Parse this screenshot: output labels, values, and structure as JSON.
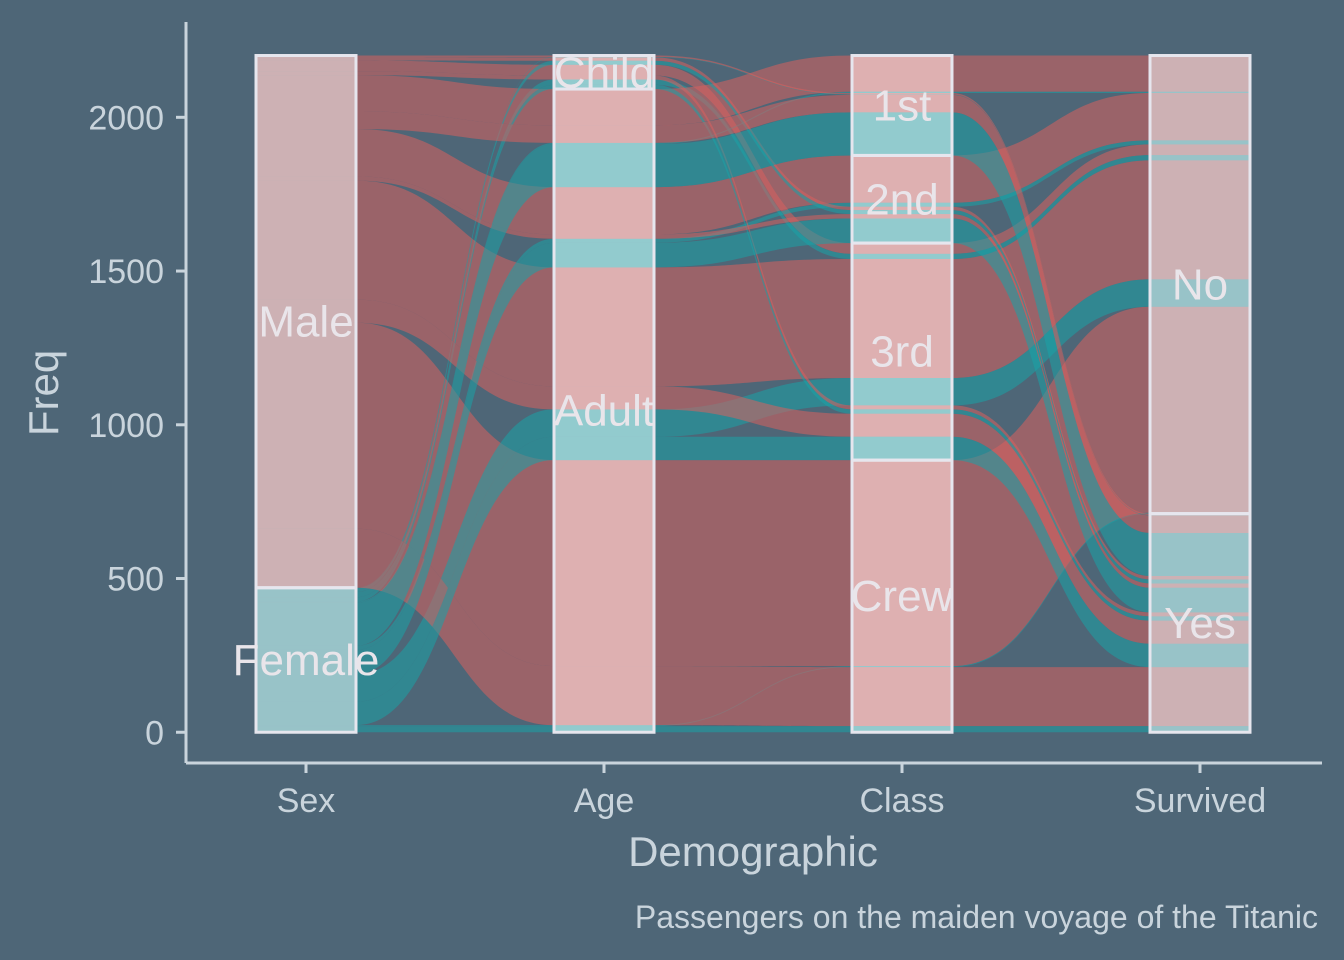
{
  "chart_data": {
    "type": "alluvial",
    "title": "",
    "xlabel": "Demographic",
    "ylabel": "Freq",
    "caption": "Passengers on the maiden voyage of the Titanic",
    "ylim": [
      -100,
      2310
    ],
    "yticks": [
      0,
      500,
      1000,
      1500,
      2000
    ],
    "axes": [
      "Sex",
      "Age",
      "Class",
      "Survived"
    ],
    "strata": {
      "Sex": [
        "Male",
        "Female"
      ],
      "Age": [
        "Child",
        "Adult"
      ],
      "Class": [
        "1st",
        "2nd",
        "3rd",
        "Crew"
      ],
      "Survived": [
        "No",
        "Yes"
      ]
    },
    "fill_by": "Sex",
    "colors": {
      "Male": "#d9605f",
      "Female": "#1aa3a8"
    },
    "background": "#4e6677",
    "flows": [
      {
        "Sex": "Male",
        "Age": "Child",
        "Class": "1st",
        "Survived": "No",
        "Freq": 0
      },
      {
        "Sex": "Male",
        "Age": "Child",
        "Class": "2nd",
        "Survived": "No",
        "Freq": 0
      },
      {
        "Sex": "Male",
        "Age": "Child",
        "Class": "3rd",
        "Survived": "No",
        "Freq": 35
      },
      {
        "Sex": "Male",
        "Age": "Child",
        "Class": "Crew",
        "Survived": "No",
        "Freq": 0
      },
      {
        "Sex": "Female",
        "Age": "Child",
        "Class": "1st",
        "Survived": "No",
        "Freq": 0
      },
      {
        "Sex": "Female",
        "Age": "Child",
        "Class": "2nd",
        "Survived": "No",
        "Freq": 0
      },
      {
        "Sex": "Female",
        "Age": "Child",
        "Class": "3rd",
        "Survived": "No",
        "Freq": 17
      },
      {
        "Sex": "Female",
        "Age": "Child",
        "Class": "Crew",
        "Survived": "No",
        "Freq": 0
      },
      {
        "Sex": "Male",
        "Age": "Adult",
        "Class": "1st",
        "Survived": "No",
        "Freq": 118
      },
      {
        "Sex": "Male",
        "Age": "Adult",
        "Class": "2nd",
        "Survived": "No",
        "Freq": 154
      },
      {
        "Sex": "Male",
        "Age": "Adult",
        "Class": "3rd",
        "Survived": "No",
        "Freq": 387
      },
      {
        "Sex": "Male",
        "Age": "Adult",
        "Class": "Crew",
        "Survived": "No",
        "Freq": 670
      },
      {
        "Sex": "Female",
        "Age": "Adult",
        "Class": "1st",
        "Survived": "No",
        "Freq": 4
      },
      {
        "Sex": "Female",
        "Age": "Adult",
        "Class": "2nd",
        "Survived": "No",
        "Freq": 13
      },
      {
        "Sex": "Female",
        "Age": "Adult",
        "Class": "3rd",
        "Survived": "No",
        "Freq": 89
      },
      {
        "Sex": "Female",
        "Age": "Adult",
        "Class": "Crew",
        "Survived": "No",
        "Freq": 3
      },
      {
        "Sex": "Male",
        "Age": "Child",
        "Class": "1st",
        "Survived": "Yes",
        "Freq": 5
      },
      {
        "Sex": "Male",
        "Age": "Child",
        "Class": "2nd",
        "Survived": "Yes",
        "Freq": 11
      },
      {
        "Sex": "Male",
        "Age": "Child",
        "Class": "3rd",
        "Survived": "Yes",
        "Freq": 13
      },
      {
        "Sex": "Male",
        "Age": "Child",
        "Class": "Crew",
        "Survived": "Yes",
        "Freq": 0
      },
      {
        "Sex": "Female",
        "Age": "Child",
        "Class": "1st",
        "Survived": "Yes",
        "Freq": 1
      },
      {
        "Sex": "Female",
        "Age": "Child",
        "Class": "2nd",
        "Survived": "Yes",
        "Freq": 13
      },
      {
        "Sex": "Female",
        "Age": "Child",
        "Class": "3rd",
        "Survived": "Yes",
        "Freq": 14
      },
      {
        "Sex": "Female",
        "Age": "Child",
        "Class": "Crew",
        "Survived": "Yes",
        "Freq": 0
      },
      {
        "Sex": "Male",
        "Age": "Adult",
        "Class": "1st",
        "Survived": "Yes",
        "Freq": 57
      },
      {
        "Sex": "Male",
        "Age": "Adult",
        "Class": "2nd",
        "Survived": "Yes",
        "Freq": 14
      },
      {
        "Sex": "Male",
        "Age": "Adult",
        "Class": "3rd",
        "Survived": "Yes",
        "Freq": 75
      },
      {
        "Sex": "Male",
        "Age": "Adult",
        "Class": "Crew",
        "Survived": "Yes",
        "Freq": 192
      },
      {
        "Sex": "Female",
        "Age": "Adult",
        "Class": "1st",
        "Survived": "Yes",
        "Freq": 140
      },
      {
        "Sex": "Female",
        "Age": "Adult",
        "Class": "2nd",
        "Survived": "Yes",
        "Freq": 80
      },
      {
        "Sex": "Female",
        "Age": "Adult",
        "Class": "3rd",
        "Survived": "Yes",
        "Freq": 76
      },
      {
        "Sex": "Female",
        "Age": "Adult",
        "Class": "Crew",
        "Survived": "Yes",
        "Freq": 20
      }
    ]
  }
}
